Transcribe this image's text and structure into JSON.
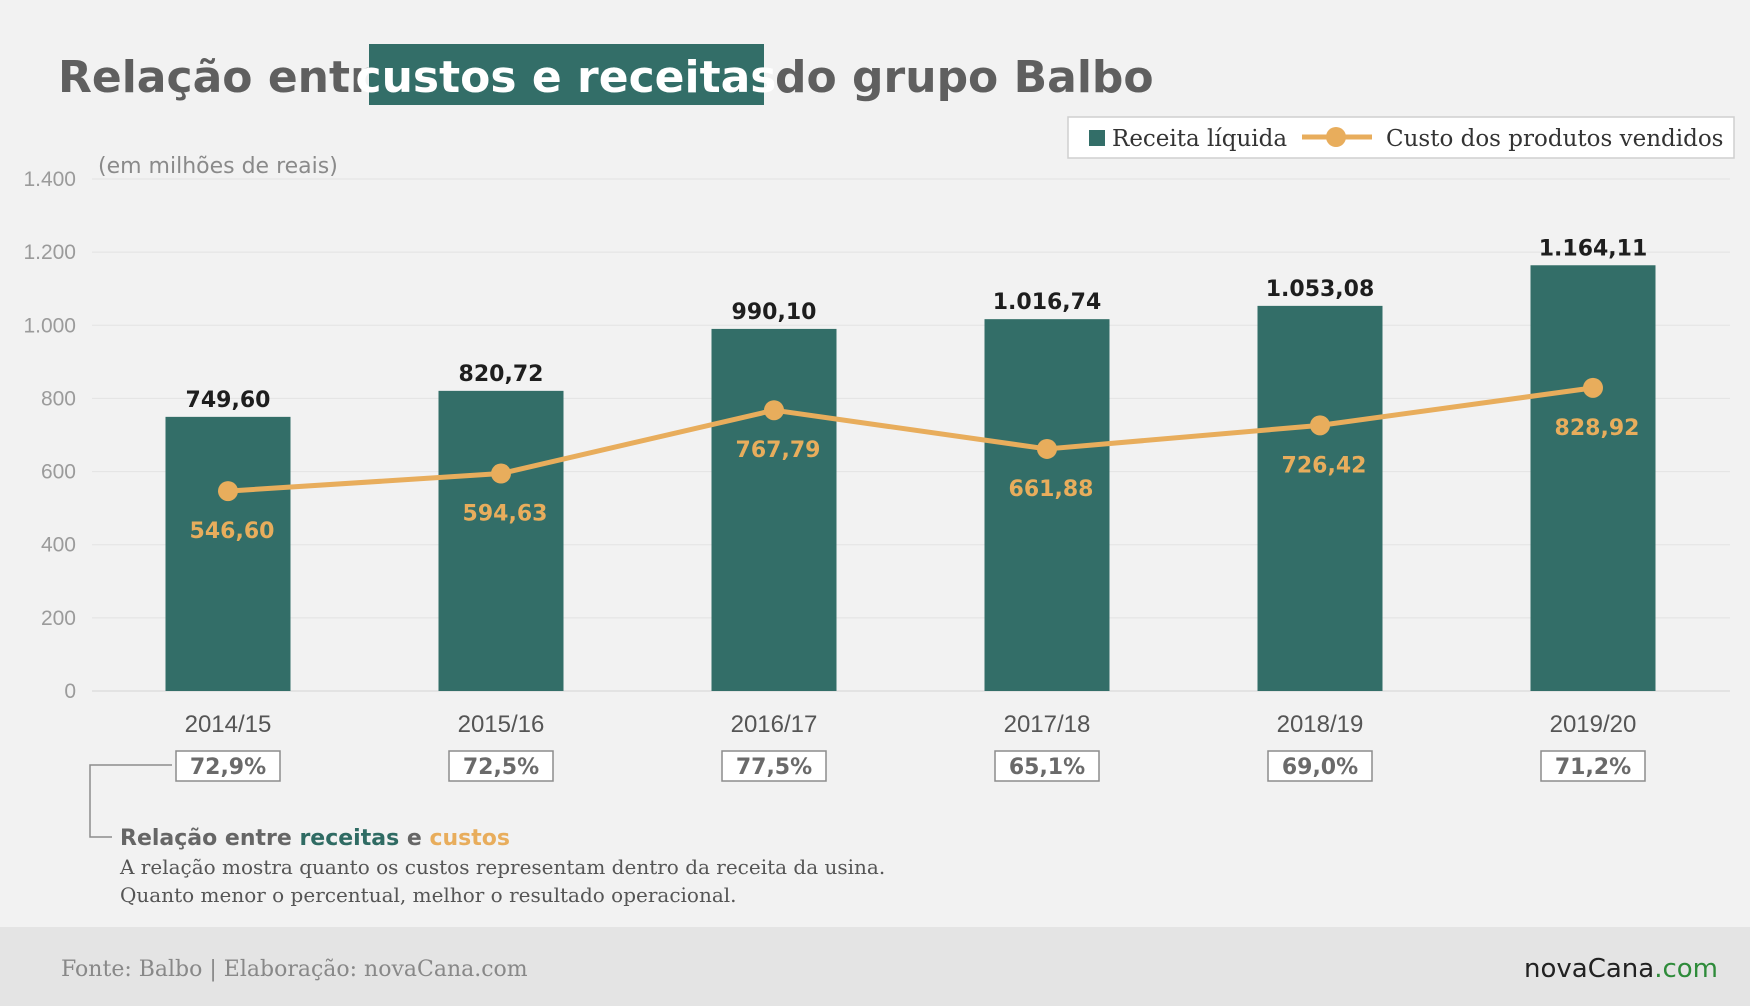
{
  "title": {
    "before": "Relação entre",
    "highlight": "custos e receitas",
    "after": "do grupo Balbo"
  },
  "unit_label": "(em milhões de reais)",
  "legend": {
    "bar": "Receita líquida",
    "line": "Custo dos produtos vendidos"
  },
  "colors": {
    "bar": "#336e68",
    "line": "#e8ad5c",
    "title_highlight_bg": "#336e68"
  },
  "chart_data": {
    "type": "bar",
    "categories": [
      "2014/15",
      "2015/16",
      "2016/17",
      "2017/18",
      "2018/19",
      "2019/20"
    ],
    "series": [
      {
        "name": "Receita líquida",
        "kind": "bar",
        "values": [
          749.6,
          820.72,
          990.1,
          1016.74,
          1053.08,
          1164.11
        ],
        "labels": [
          "749,60",
          "820,72",
          "990,10",
          "1.016,74",
          "1.053,08",
          "1.164,11"
        ]
      },
      {
        "name": "Custo dos produtos vendidos",
        "kind": "line",
        "values": [
          546.6,
          594.63,
          767.79,
          661.88,
          726.42,
          828.92
        ],
        "labels": [
          "546,60",
          "594,63",
          "767,79",
          "661,88",
          "726,42",
          "828,92"
        ]
      }
    ],
    "ratios": [
      "72,9%",
      "72,5%",
      "77,5%",
      "65,1%",
      "69,0%",
      "71,2%"
    ],
    "ylim": [
      0,
      1400
    ],
    "yticks": [
      0,
      200,
      400,
      600,
      800,
      1000,
      1200,
      1400
    ],
    "ytick_labels": [
      "0",
      "200",
      "400",
      "600",
      "800",
      "1.000",
      "1.200",
      "1.400"
    ],
    "grid": true,
    "legend_position": "top-right"
  },
  "note": {
    "title_part1": "Relação entre",
    "title_green": "receitas",
    "title_mid": "e",
    "title_orange": "custos",
    "line1": "A relação mostra quanto os custos representam dentro da receita da usina.",
    "line2": "Quanto menor o percentual, melhor o resultado operacional."
  },
  "footer": {
    "source": "Fonte: Balbo | Elaboração: novaCana.com",
    "brand_main": "novaCana",
    "brand_suffix": ".com"
  }
}
